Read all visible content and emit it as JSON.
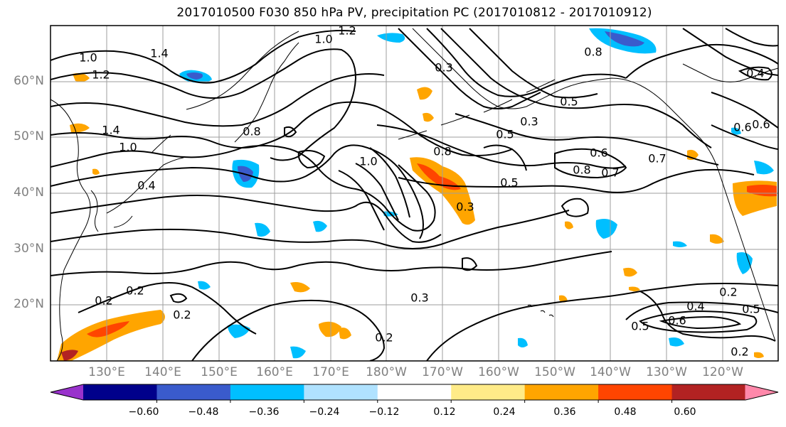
{
  "title": "2017010500 F030 850 hPa PV, precipitation PC (2017010812 - 2017010912)",
  "lat_labels": [
    "60°N",
    "50°N",
    "40°N",
    "30°N",
    "20°N"
  ],
  "lon_labels": [
    "130°E",
    "140°E",
    "150°E",
    "160°E",
    "170°E",
    "180°W",
    "170°W",
    "160°W",
    "150°W",
    "140°W",
    "130°W",
    "120°W"
  ],
  "colorbar": {
    "ticks": [
      "−0.60",
      "−0.48",
      "−0.36",
      "−0.24",
      "−0.12",
      "0.12",
      "0.24",
      "0.36",
      "0.48",
      "0.60"
    ],
    "colors": [
      "#9932cc",
      "#00008b",
      "#3a5bcc",
      "#00bfff",
      "#b0e2ff",
      "#ffffff",
      "#ffeb88",
      "#ffa500",
      "#ff4500",
      "#b22222",
      "#ff88aa"
    ]
  },
  "contour_labels": [
    "1.2",
    "1.0",
    "1.0",
    "1.4",
    "1.0",
    "1.2",
    "0.4",
    "0.2",
    "0.2",
    "0.2",
    "1.4",
    "0.8",
    "1.0",
    "0.8",
    "0.5",
    "0.3",
    "0.3",
    "0.3",
    "0.2",
    "0.5",
    "0.8",
    "0.6",
    "0.7",
    "0.7",
    "0.8",
    "0.5",
    "0.3",
    "0.6",
    "0.6",
    "0.4",
    "0.2",
    "0.5",
    "0.4",
    "0.6",
    "0.5",
    "0.2"
  ]
}
